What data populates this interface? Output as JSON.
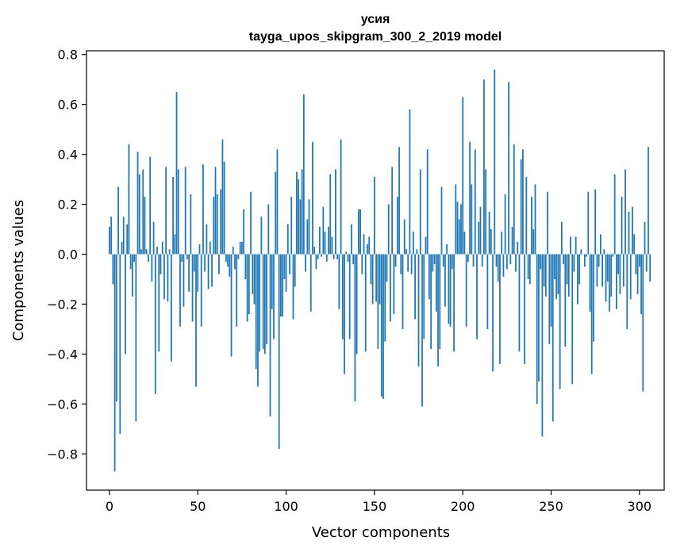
{
  "chart_data": {
    "type": "bar",
    "title": "усия",
    "subtitle": "tayga_upos_skipgram_300_2_2019 model",
    "xlabel": "Vector components",
    "ylabel": "Components values",
    "xlim": [
      -13,
      314
    ],
    "ylim": [
      -0.945,
      0.815
    ],
    "x_ticks": [
      0,
      50,
      100,
      150,
      200,
      250,
      300
    ],
    "x_tick_labels": [
      "0",
      "50",
      "100",
      "150",
      "200",
      "250",
      "300"
    ],
    "y_ticks": [
      -0.8,
      -0.6,
      -0.4,
      -0.2,
      0.0,
      0.2,
      0.4,
      0.6,
      0.8
    ],
    "y_tick_labels": [
      "−0.8",
      "−0.6",
      "−0.4",
      "−0.2",
      "0.0",
      "0.2",
      "0.4",
      "0.6",
      "0.8"
    ],
    "grid": false,
    "bar_color": "#1f77b4",
    "series": [
      {
        "name": "усия",
        "values": [
          0.11,
          0.15,
          -0.12,
          -0.87,
          -0.59,
          0.27,
          -0.72,
          0.05,
          0.15,
          -0.4,
          0.12,
          0.44,
          -0.06,
          -0.17,
          -0.03,
          -0.67,
          0.41,
          0.32,
          0.02,
          0.34,
          0.23,
          0.02,
          -0.03,
          0.39,
          -0.11,
          0.13,
          -0.56,
          0.03,
          -0.39,
          -0.08,
          0.05,
          -0.18,
          0.35,
          -0.19,
          0.02,
          -0.43,
          0.31,
          0.08,
          0.65,
          0.34,
          -0.29,
          -0.03,
          -0.21,
          0.35,
          -0.02,
          -0.15,
          0.24,
          -0.27,
          -0.07,
          -0.53,
          -0.15,
          0.04,
          -0.29,
          0.36,
          -0.07,
          0.12,
          -0.14,
          0.05,
          -0.13,
          0.23,
          0.35,
          0.24,
          -0.08,
          0.26,
          0.46,
          0.37,
          -0.03,
          -0.05,
          -0.09,
          -0.41,
          0.03,
          -0.06,
          -0.29,
          -0.02,
          0.05,
          0.05,
          0.18,
          -0.1,
          -0.27,
          -0.24,
          0.25,
          -0.16,
          -0.2,
          -0.46,
          -0.53,
          -0.39,
          0.15,
          -0.38,
          -0.4,
          -0.36,
          0.2,
          -0.65,
          -0.22,
          -0.34,
          0.33,
          0.42,
          -0.78,
          -0.25,
          -0.25,
          -0.1,
          -0.15,
          0.12,
          -0.08,
          0.23,
          -0.26,
          -0.13,
          0.33,
          0.3,
          0.22,
          0.34,
          0.64,
          -0.07,
          0.14,
          0.22,
          -0.23,
          0.45,
          0.03,
          -0.06,
          -0.02,
          0.11,
          -0.01,
          0.19,
          0.09,
          -0.03,
          0.11,
          0.32,
          0.07,
          -0.02,
          0.34,
          -0.02,
          -0.22,
          0.46,
          -0.34,
          -0.48,
          0.01,
          -0.03,
          -0.34,
          0.12,
          -0.04,
          -0.59,
          -0.4,
          0.18,
          0.18,
          -0.08,
          0.08,
          -0.39,
          0.04,
          0.07,
          -0.12,
          -0.2,
          0.31,
          -0.19,
          -0.38,
          -0.2,
          -0.57,
          -0.58,
          -0.35,
          -0.11,
          0.2,
          -0.27,
          0.35,
          -0.24,
          -0.05,
          0.23,
          0.43,
          -0.08,
          -0.3,
          0.14,
          0.02,
          -0.07,
          0.58,
          -0.08,
          0.09,
          -0.26,
          0.02,
          -0.45,
          0.34,
          -0.61,
          -0.34,
          0.07,
          0.42,
          -0.18,
          -0.38,
          -0.07,
          -0.04,
          -0.23,
          -0.45,
          -0.38,
          0.27,
          -0.05,
          -0.21,
          0.04,
          -0.28,
          -0.29,
          -0.06,
          -0.39,
          0.28,
          0.21,
          0.14,
          0.2,
          0.63,
          0.09,
          -0.29,
          -0.03,
          0.45,
          0.28,
          -0.05,
          0.42,
          -0.34,
          0.13,
          0.19,
          -0.05,
          0.7,
          0.34,
          -0.3,
          0.17,
          0.1,
          -0.47,
          0.74,
          -0.05,
          -0.11,
          -0.44,
          0.09,
          -0.09,
          0.24,
          -0.06,
          0.69,
          -0.04,
          0.11,
          0.44,
          -0.07,
          0.05,
          -0.39,
          0.38,
          0.42,
          -0.44,
          0.31,
          -0.1,
          -0.12,
          0.23,
          0.1,
          0.28,
          -0.6,
          -0.51,
          -0.06,
          -0.73,
          -0.13,
          -0.17,
          0.25,
          -0.36,
          -0.29,
          -0.67,
          -0.1,
          -0.18,
          -0.16,
          -0.54,
          0.13,
          -0.04,
          -0.37,
          -0.12,
          -0.17,
          0.07,
          -0.52,
          -0.07,
          0.07,
          -0.2,
          -0.12,
          0.02,
          0.0,
          -0.05,
          -0.01,
          0.25,
          -0.23,
          -0.48,
          -0.35,
          0.26,
          -0.13,
          -0.05,
          0.08,
          -0.13,
          0.02,
          -0.19,
          -0.11,
          -0.23,
          -0.17,
          -0.01,
          0.32,
          -0.22,
          -0.08,
          -0.16,
          0.23,
          -0.13,
          0.34,
          -0.3,
          0.17,
          -0.18,
          0.19,
          0.08,
          -0.08,
          -0.16,
          -0.05,
          -0.24,
          -0.55,
          0.13,
          -0.07,
          0.43,
          -0.11
        ]
      }
    ]
  }
}
